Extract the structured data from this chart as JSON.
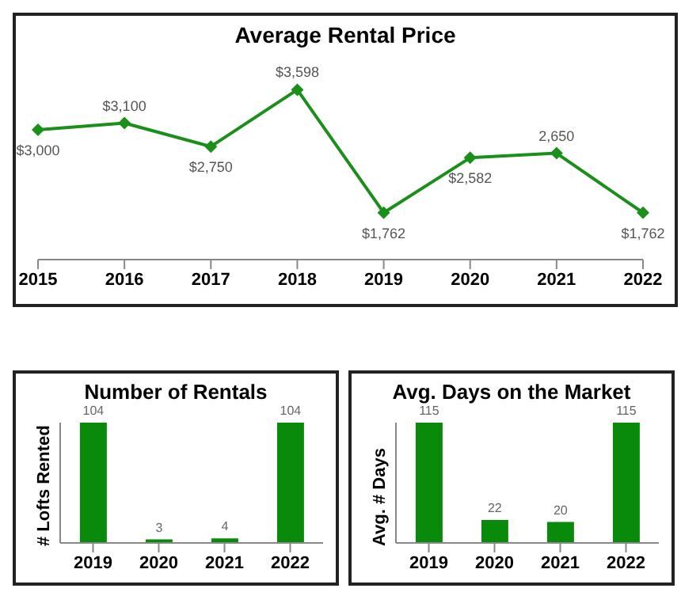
{
  "chart_data": [
    {
      "type": "line",
      "title": "Average Rental Price",
      "categories": [
        "2015",
        "2016",
        "2017",
        "2018",
        "2019",
        "2020",
        "2021",
        "2022"
      ],
      "values": [
        3000,
        3100,
        2750,
        3598,
        1762,
        2582,
        2650,
        1762
      ],
      "value_labels": [
        "$3,000",
        "$3,100",
        "$2,750",
        "$3,598",
        "$1,762",
        "$2,582",
        "2,650",
        "$1,762"
      ],
      "color": "#1a8f1a",
      "marker": "diamond"
    },
    {
      "type": "bar",
      "title": "Number of Rentals",
      "ylabel": "# Lofts Rented",
      "categories": [
        "2019",
        "2020",
        "2021",
        "2022"
      ],
      "values": [
        104,
        3,
        4,
        104
      ],
      "color": "#0a8a0a",
      "data_labels": true
    },
    {
      "type": "bar",
      "title": "Avg. Days on the Market",
      "ylabel": "Avg. # Days",
      "categories": [
        "2019",
        "2020",
        "2021",
        "2022"
      ],
      "values": [
        115,
        22,
        20,
        115
      ],
      "color": "#0a8a0a",
      "data_labels": true
    }
  ]
}
